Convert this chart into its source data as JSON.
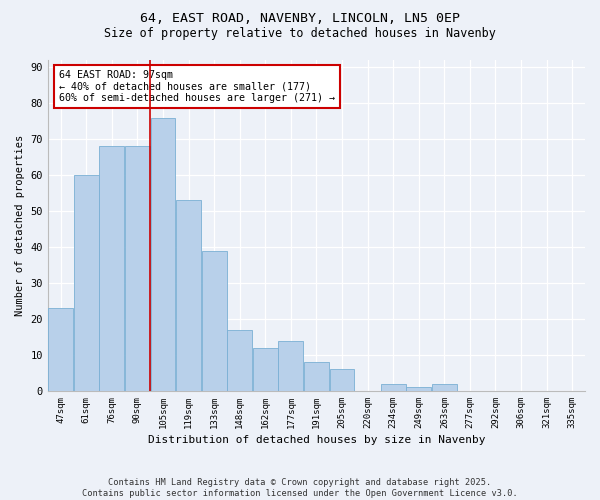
{
  "title1": "64, EAST ROAD, NAVENBY, LINCOLN, LN5 0EP",
  "title2": "Size of property relative to detached houses in Navenby",
  "xlabel": "Distribution of detached houses by size in Navenby",
  "ylabel": "Number of detached properties",
  "categories": [
    "47sqm",
    "61sqm",
    "76sqm",
    "90sqm",
    "105sqm",
    "119sqm",
    "133sqm",
    "148sqm",
    "162sqm",
    "177sqm",
    "191sqm",
    "205sqm",
    "220sqm",
    "234sqm",
    "249sqm",
    "263sqm",
    "277sqm",
    "292sqm",
    "306sqm",
    "321sqm",
    "335sqm"
  ],
  "values": [
    23,
    60,
    68,
    68,
    76,
    53,
    39,
    17,
    12,
    14,
    8,
    6,
    0,
    2,
    1,
    2,
    0,
    0,
    0,
    0,
    0
  ],
  "bar_color": "#b8d0ea",
  "bar_edge_color": "#7aafd4",
  "vline_x_index": 3,
  "vline_color": "#cc0000",
  "annotation_text": "64 EAST ROAD: 97sqm\n← 40% of detached houses are smaller (177)\n60% of semi-detached houses are larger (271) →",
  "annotation_box_color": "#ffffff",
  "annotation_box_edge": "#cc0000",
  "ylim": [
    0,
    92
  ],
  "yticks": [
    0,
    10,
    20,
    30,
    40,
    50,
    60,
    70,
    80,
    90
  ],
  "footer": "Contains HM Land Registry data © Crown copyright and database right 2025.\nContains public sector information licensed under the Open Government Licence v3.0.",
  "bg_color": "#edf1f8",
  "grid_color": "#ffffff",
  "title_fontsize": 9.5,
  "subtitle_fontsize": 8.5
}
